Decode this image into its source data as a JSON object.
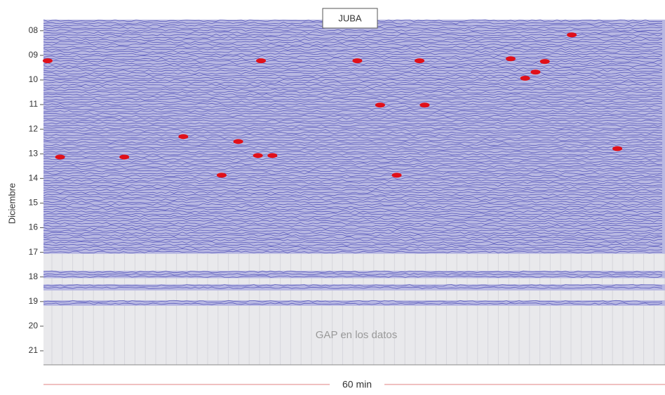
{
  "chart_data": {
    "type": "helicorder",
    "title": "JUBA",
    "ylabel": "Diciembre",
    "xlabel": "60 min",
    "annotation": "GAP en los datos",
    "xlim": [
      0,
      60
    ],
    "ylim": [
      7.55,
      21.57
    ],
    "y_inverted": true,
    "yticks": [
      {
        "value": 8,
        "label": "08"
      },
      {
        "value": 9,
        "label": "09"
      },
      {
        "value": 10,
        "label": "10"
      },
      {
        "value": 11,
        "label": "11"
      },
      {
        "value": 12,
        "label": "12"
      },
      {
        "value": 13,
        "label": "13"
      },
      {
        "value": 14,
        "label": "14"
      },
      {
        "value": 15,
        "label": "15"
      },
      {
        "value": 16,
        "label": "16"
      },
      {
        "value": 17,
        "label": "17"
      },
      {
        "value": 18,
        "label": "18"
      },
      {
        "value": 19,
        "label": "19"
      },
      {
        "value": 20,
        "label": "20"
      },
      {
        "value": 21,
        "label": "21"
      }
    ],
    "trace_color": "#3d3db0",
    "event_color": "#e0101a",
    "data_periods": [
      [
        7.55,
        17.06
      ],
      [
        17.75,
        18.05
      ],
      [
        18.3,
        18.55
      ],
      [
        18.95,
        19.17
      ]
    ],
    "events": [
      {
        "minute": 0.4,
        "hour": 9.22
      },
      {
        "minute": 21,
        "hour": 9.22
      },
      {
        "minute": 30.3,
        "hour": 9.22
      },
      {
        "minute": 36.3,
        "hour": 9.22
      },
      {
        "minute": 45.1,
        "hour": 9.14
      },
      {
        "minute": 48.4,
        "hour": 9.25
      },
      {
        "minute": 1.6,
        "hour": 13.13
      },
      {
        "minute": 7.8,
        "hour": 13.13
      },
      {
        "minute": 20.7,
        "hour": 13.07
      },
      {
        "minute": 22.1,
        "hour": 13.07
      },
      {
        "minute": 18.8,
        "hour": 12.5
      },
      {
        "minute": 13.5,
        "hour": 12.3
      },
      {
        "minute": 17.2,
        "hour": 13.87
      },
      {
        "minute": 34.1,
        "hour": 13.87
      },
      {
        "minute": 32.5,
        "hour": 11.02
      },
      {
        "minute": 36.8,
        "hour": 11.02
      },
      {
        "minute": 47.5,
        "hour": 9.68
      },
      {
        "minute": 46.5,
        "hour": 9.93
      },
      {
        "minute": 55.4,
        "hour": 12.79
      },
      {
        "minute": 51,
        "hour": 8.17
      }
    ]
  }
}
